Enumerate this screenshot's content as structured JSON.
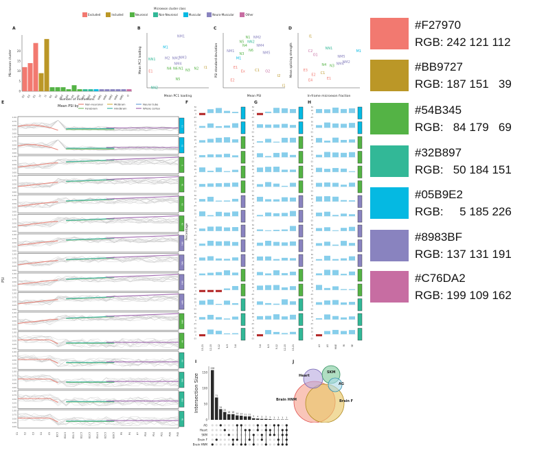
{
  "legend": {
    "title": "Microexon cluster class",
    "items": [
      {
        "label": "Excluded",
        "color": "#F27970"
      },
      {
        "label": "Included",
        "color": "#BB9727"
      },
      {
        "label": "Neuronal",
        "color": "#54B345"
      },
      {
        "label": "Non-Neuronal",
        "color": "#32B897"
      },
      {
        "label": "Muscular",
        "color": "#05B9E2"
      },
      {
        "label": "Neuro-Muscular",
        "color": "#8983BF"
      },
      {
        "label": "Other",
        "color": "#C76DA2"
      }
    ]
  },
  "panels": {
    "A": "A",
    "B": "B",
    "C": "C",
    "D": "D",
    "E": "E",
    "F": "F",
    "G": "G",
    "H": "H",
    "I": "I",
    "J": "J"
  },
  "panelA": {
    "ylabel": "Microexon cluster",
    "xlabel": "Number of microexons",
    "yticks": [
      "0",
      "5",
      "10",
      "15",
      "20"
    ],
    "bars": [
      {
        "label": "E2",
        "value": 12,
        "color": "#F27970"
      },
      {
        "label": "E3",
        "value": 14,
        "color": "#F27970"
      },
      {
        "label": "E1",
        "value": 24,
        "color": "#F27970"
      },
      {
        "label": "I2",
        "value": 9,
        "color": "#BB9727"
      },
      {
        "label": "I1",
        "value": 26,
        "color": "#BB9727"
      },
      {
        "label": "N1",
        "value": 2,
        "color": "#54B345"
      },
      {
        "label": "N2",
        "value": 2,
        "color": "#54B345"
      },
      {
        "label": "N3",
        "value": 2,
        "color": "#54B345"
      },
      {
        "label": "N4",
        "value": 1,
        "color": "#54B345"
      },
      {
        "label": "N5",
        "value": 3,
        "color": "#54B345"
      },
      {
        "label": "N6",
        "value": 1,
        "color": "#54B345"
      },
      {
        "label": "NN1",
        "value": 1,
        "color": "#32B897"
      },
      {
        "label": "NN2",
        "value": 1,
        "color": "#32B897"
      },
      {
        "label": "M1",
        "value": 1,
        "color": "#05B9E2"
      },
      {
        "label": "NM1",
        "value": 1,
        "color": "#8983BF"
      },
      {
        "label": "NM2",
        "value": 1,
        "color": "#8983BF"
      },
      {
        "label": "NM3",
        "value": 1,
        "color": "#8983BF"
      },
      {
        "label": "NM4",
        "value": 1,
        "color": "#8983BF"
      },
      {
        "label": "NM5",
        "value": 1,
        "color": "#8983BF"
      },
      {
        "label": "O",
        "value": 1,
        "color": "#C76DA2"
      }
    ]
  },
  "panelB": {
    "xlabel": "Mean PC1 loading",
    "ylabel": "Mean PC2 loading"
  },
  "panelC": {
    "xlabel": "Mean PSI",
    "ylabel": "PSI standard deviation"
  },
  "panelD": {
    "xlabel": "In-frame microexon fraction",
    "ylabel": "Mean splicing strength"
  },
  "panelE": {
    "legend_title": "Mean PSI by",
    "legend_items": [
      {
        "label": "Non-neuronal",
        "color": "#e8857a"
      },
      {
        "label": "Midbrain",
        "color": "#d4b64a"
      },
      {
        "label": "Neural tube",
        "color": "#6aa0d8"
      },
      {
        "label": "Forebrain",
        "color": "#7fc06a"
      },
      {
        "label": "Hindbrain",
        "color": "#3fb3a6"
      },
      {
        "label": "Whole cortex",
        "color": "#a068b0"
      }
    ],
    "ylabel": "PSI",
    "xticks": [
      "C1",
      "C2",
      "C3",
      "C4",
      "C5",
      "E9.5",
      "E10.5",
      "E11.5",
      "E12.5",
      "E13.5",
      "E14.5",
      "E15.5",
      "E16.5",
      "P0",
      "P4",
      "P7",
      "P10",
      "P14",
      "P21",
      "P28",
      "P40"
    ],
    "row_tags": [
      "E1",
      "E2",
      "I1",
      "N1",
      "N2",
      "N3",
      "NM1",
      "NM2",
      "NM3",
      "NM4",
      "NM5",
      "N4",
      "N5",
      "NN1",
      "NN2",
      "M1"
    ]
  },
  "panelF": {
    "ylabel": "Percentage",
    "xticks": [
      "15-21",
      "12-15",
      "9-12",
      "6-9",
      "3-6"
    ]
  },
  "panelG": {
    "xticks": [
      "3-6",
      "6-9",
      "9-12",
      "12-15",
      "15-21"
    ]
  },
  "panelH": {
    "xticks": [
      "A3",
      "A5",
      "MXE",
      "RI",
      "SE"
    ]
  },
  "panelI": {
    "ylabel": "Intersection Size",
    "yticks": [
      "0",
      "50",
      "100",
      "150"
    ],
    "values": [
      158,
      71,
      34,
      25,
      18,
      18,
      14,
      13,
      11,
      11,
      5,
      4,
      3,
      3,
      2,
      1,
      1,
      1,
      1
    ],
    "sets": [
      "AG",
      "Heart",
      "SKM",
      "Brain F",
      "Brain HNM"
    ]
  },
  "panelJ": {
    "labels": [
      "Heart",
      "SKM",
      "AG",
      "Brain HNM",
      "Brain F"
    ]
  },
  "colors": [
    {
      "hex": "#F27970",
      "rgb": "RGB: 242 121 112"
    },
    {
      "hex": "#BB9727",
      "rgb": "RGB: 187 151   39"
    },
    {
      "hex": "#54B345",
      "rgb": "RGB:   84 179   69"
    },
    {
      "hex": "#32B897",
      "rgb": "RGB:   50 184 151"
    },
    {
      "hex": "#05B9E2",
      "rgb": "RGB:     5 185 226"
    },
    {
      "hex": "#8983BF",
      "rgb": "RGB: 137 131 191"
    },
    {
      "hex": "#C76DA2",
      "rgb": "RGB: 199 109 162"
    }
  ]
}
